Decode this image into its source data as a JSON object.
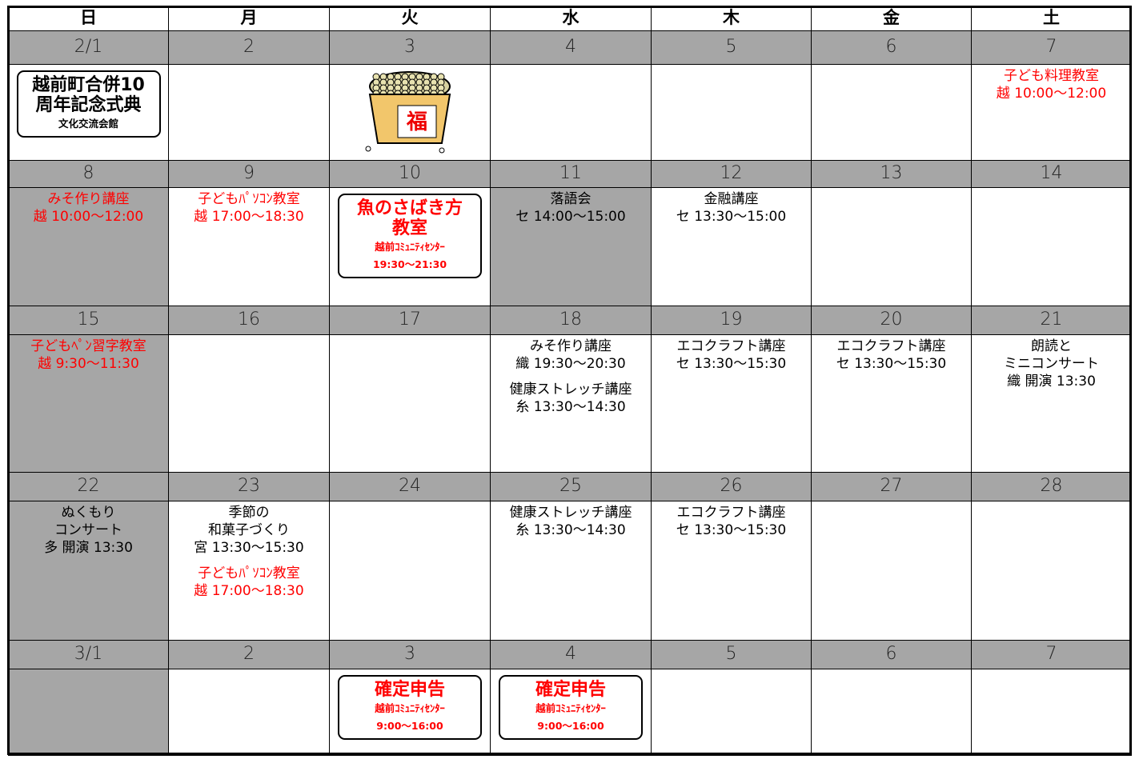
{
  "header": {
    "days": [
      "日",
      "月",
      "火",
      "水",
      "木",
      "金",
      "土"
    ]
  },
  "weeks": [
    {
      "dates": [
        "2/1",
        "2",
        "3",
        "4",
        "5",
        "6",
        "7"
      ],
      "cells": [
        {
          "events": [
            {
              "kind": "box",
              "color": "#000000",
              "title": [
                "越前町合併10",
                "周年記念式典"
              ],
              "sub": [
                "文化交流会館"
              ]
            }
          ]
        },
        {
          "events": []
        },
        {
          "events": [],
          "icon_text": "福"
        },
        {
          "events": []
        },
        {
          "events": []
        },
        {
          "events": []
        },
        {
          "events": [
            {
              "kind": "plain",
              "color": "#ff0000",
              "lines": [
                "子ども料理教室",
                "越 10:00～12:00"
              ]
            }
          ]
        }
      ]
    },
    {
      "dates": [
        "8",
        "9",
        "10",
        "11",
        "12",
        "13",
        "14"
      ],
      "cells": [
        {
          "shaded": true,
          "events": [
            {
              "kind": "plain",
              "color": "#ff0000",
              "lines": [
                "みそ作り講座",
                "越 10:00～12:00"
              ]
            }
          ]
        },
        {
          "events": [
            {
              "kind": "plain",
              "color": "#ff0000",
              "lines": [
                "子どもﾊﾟｿｺﾝ教室",
                "越 17:00～18:30"
              ]
            }
          ]
        },
        {
          "events": [
            {
              "kind": "box",
              "color": "#ff0000",
              "title": [
                "魚のさばき方",
                "教室"
              ],
              "sub": [
                "越前ｺﾐｭﾆﾃｨｾﾝﾀｰ",
                "19:30～21:30"
              ]
            }
          ]
        },
        {
          "shaded": true,
          "events": [
            {
              "kind": "plain",
              "color": "#000000",
              "lines": [
                "落語会",
                "セ 14:00～15:00"
              ]
            }
          ]
        },
        {
          "events": [
            {
              "kind": "plain",
              "color": "#000000",
              "lines": [
                "金融講座",
                "セ 13:30～15:00"
              ]
            }
          ]
        },
        {
          "events": []
        },
        {
          "events": []
        }
      ]
    },
    {
      "dates": [
        "15",
        "16",
        "17",
        "18",
        "19",
        "20",
        "21"
      ],
      "cells": [
        {
          "shaded": true,
          "events": [
            {
              "kind": "plain",
              "color": "#ff0000",
              "lines": [
                "子どもﾍﾟﾝ習字教室",
                "越 9:30～11:30"
              ]
            }
          ]
        },
        {
          "events": []
        },
        {
          "events": []
        },
        {
          "events": [
            {
              "kind": "plain",
              "color": "#000000",
              "lines": [
                "みそ作り講座",
                "織 19:30～20:30"
              ]
            },
            {
              "kind": "plain",
              "color": "#000000",
              "lines": [
                "健康ストレッチ講座",
                "糸 13:30～14:30"
              ]
            }
          ]
        },
        {
          "events": [
            {
              "kind": "plain",
              "color": "#000000",
              "lines": [
                "エコクラフト講座",
                "セ 13:30～15:30"
              ]
            }
          ]
        },
        {
          "events": [
            {
              "kind": "plain",
              "color": "#000000",
              "lines": [
                "エコクラフト講座",
                "セ 13:30～15:30"
              ]
            }
          ]
        },
        {
          "events": [
            {
              "kind": "plain",
              "color": "#000000",
              "lines": [
                "朗読と",
                "ミニコンサート",
                "織 開演 13:30"
              ]
            }
          ]
        }
      ]
    },
    {
      "dates": [
        "22",
        "23",
        "24",
        "25",
        "26",
        "27",
        "28"
      ],
      "cells": [
        {
          "shaded": true,
          "events": [
            {
              "kind": "plain",
              "color": "#000000",
              "lines": [
                "ぬくもり",
                "コンサート",
                "多 開演 13:30"
              ]
            }
          ]
        },
        {
          "events": [
            {
              "kind": "plain",
              "color": "#000000",
              "lines": [
                "季節の",
                "和菓子づくり",
                "宮 13:30～15:30"
              ]
            },
            {
              "kind": "plain",
              "color": "#ff0000",
              "lines": [
                "子どもﾊﾟｿｺﾝ教室",
                "越 17:00～18:30"
              ]
            }
          ]
        },
        {
          "events": []
        },
        {
          "events": [
            {
              "kind": "plain",
              "color": "#000000",
              "lines": [
                "健康ストレッチ講座",
                "糸 13:30～14:30"
              ]
            }
          ]
        },
        {
          "events": [
            {
              "kind": "plain",
              "color": "#000000",
              "lines": [
                "エコクラフト講座",
                "セ 13:30～15:30"
              ]
            }
          ]
        },
        {
          "events": []
        },
        {
          "events": []
        }
      ]
    },
    {
      "dates": [
        "3/1",
        "2",
        "3",
        "4",
        "5",
        "6",
        "7"
      ],
      "cells": [
        {
          "shaded": true,
          "events": []
        },
        {
          "events": []
        },
        {
          "events": [
            {
              "kind": "box",
              "color": "#ff0000",
              "title": [
                "確定申告"
              ],
              "sub": [
                "越前ｺﾐｭﾆﾃｨｾﾝﾀｰ",
                "9:00～16:00"
              ]
            }
          ]
        },
        {
          "events": [
            {
              "kind": "box",
              "color": "#ff0000",
              "title": [
                "確定申告"
              ],
              "sub": [
                "越前ｺﾐｭﾆﾃｨｾﾝﾀｰ",
                "9:00～16:00"
              ]
            }
          ]
        },
        {
          "events": []
        },
        {
          "events": []
        },
        {
          "events": []
        }
      ]
    }
  ]
}
